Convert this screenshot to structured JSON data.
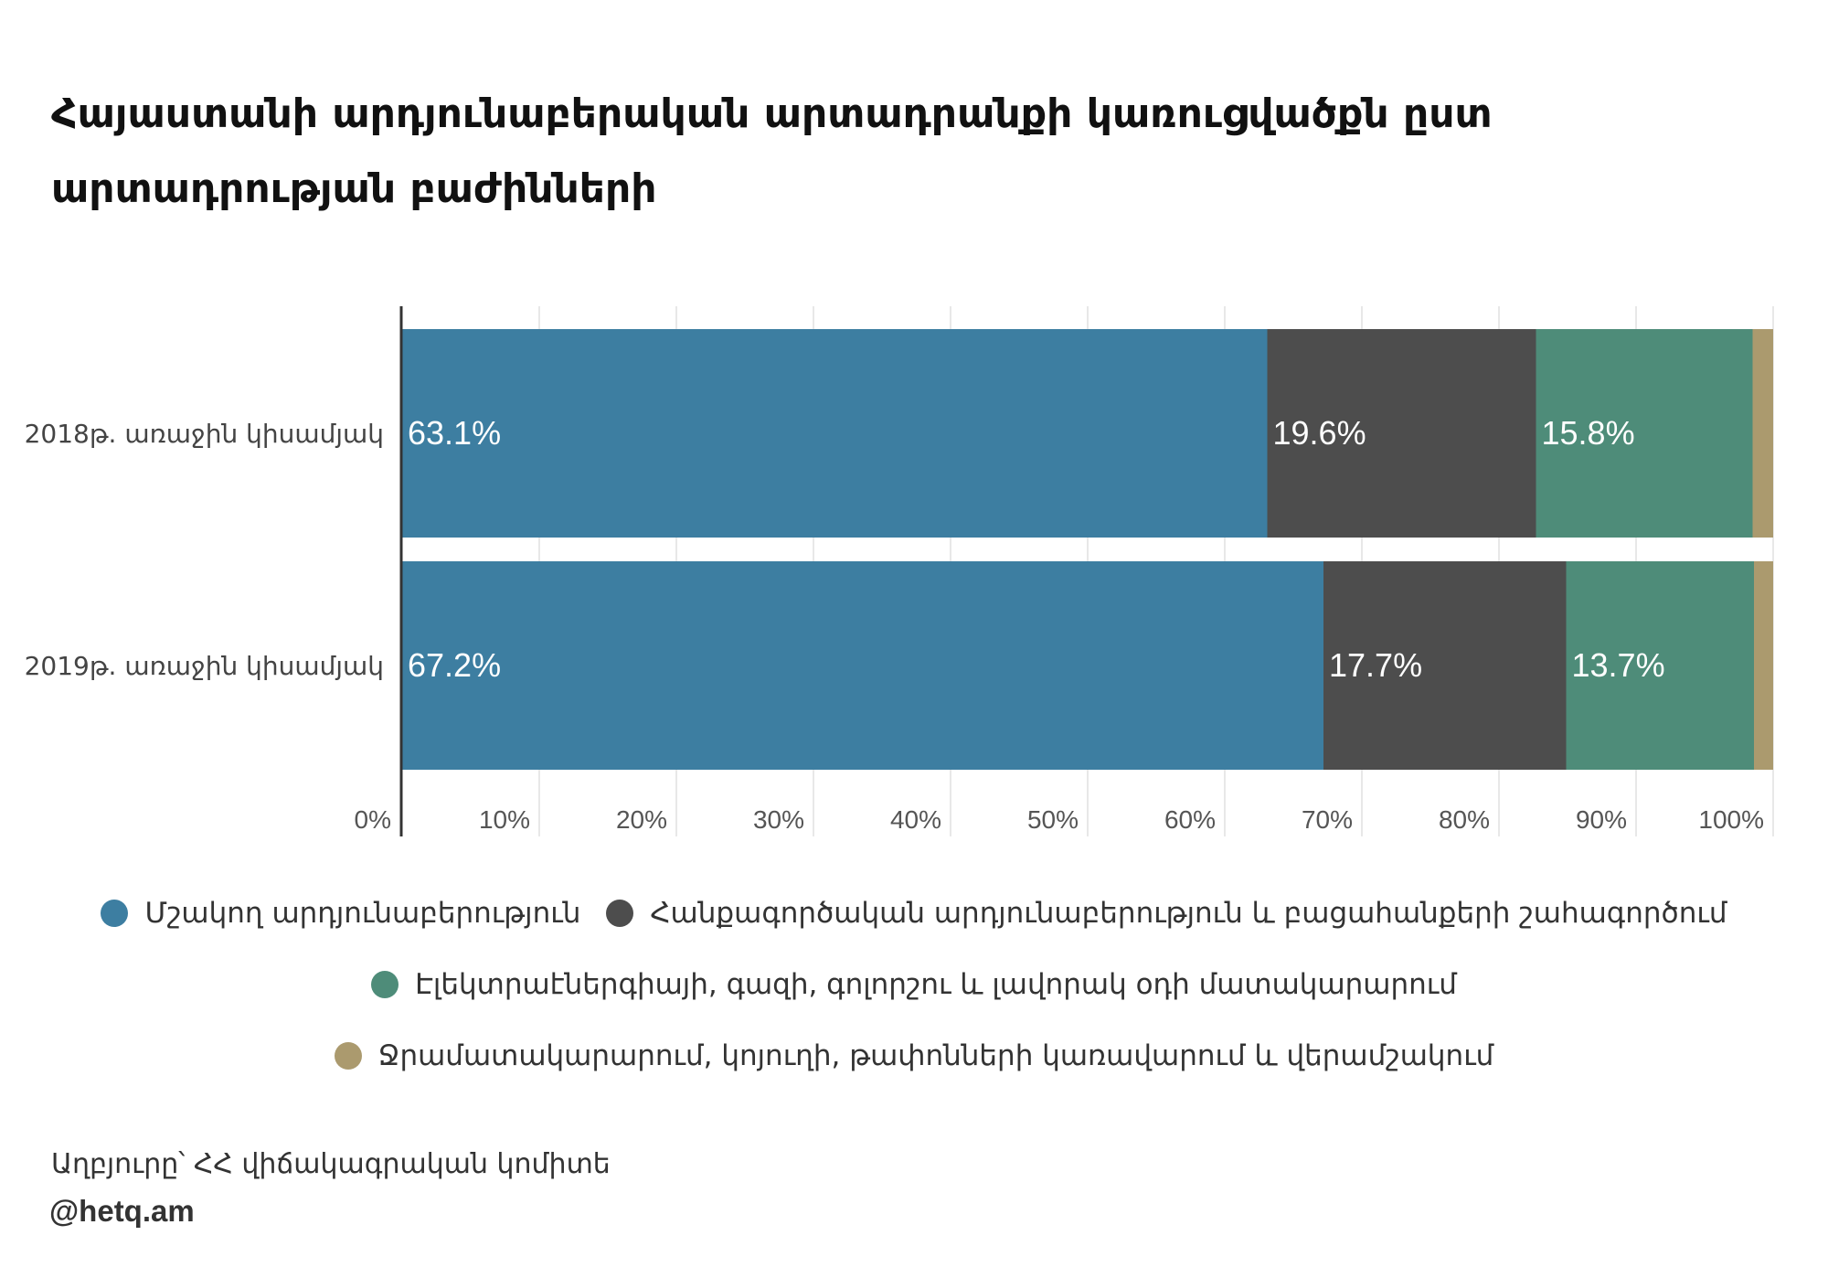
{
  "title": "Հայաստանի արդյունաբերական արտադրանքի կառուցվածքն ըստ արտադրության բաժինների",
  "chart_data": {
    "type": "bar",
    "orientation": "horizontal",
    "stacked": true,
    "categories": [
      "2018թ. առաջին կիսամյակ",
      "2019թ. առաջին կիսամյակ"
    ],
    "series": [
      {
        "name": "Մշակող արդյունաբերություն",
        "color": "#3d7ea1",
        "values": [
          63.1,
          67.2
        ],
        "labels": [
          "63.1%",
          "67.2%"
        ]
      },
      {
        "name": "Հանքագործական արդյունաբերություն և բացահանքերի շահագործում",
        "color": "#4d4d4d",
        "values": [
          19.6,
          17.7
        ],
        "labels": [
          "19.6%",
          "17.7%"
        ]
      },
      {
        "name": "Էլեկտրաէներգիայի, գազի, գոլորշու և լավորակ օդի մատակարարում",
        "color": "#4e8c79",
        "values": [
          15.8,
          13.7
        ],
        "labels": [
          "15.8%",
          "13.7%"
        ]
      },
      {
        "name": "Ջրամատակարարում, կոյուղի, թափոնների կառավարում և վերամշակում",
        "color": "#ab9a6e",
        "values": [
          1.5,
          1.4
        ],
        "labels": [
          "",
          ""
        ]
      }
    ],
    "x_ticks": [
      "0%",
      "10%",
      "20%",
      "30%",
      "40%",
      "50%",
      "60%",
      "70%",
      "80%",
      "90%",
      "100%"
    ],
    "xlim": [
      0,
      100
    ],
    "grid": true,
    "legend_position": "bottom"
  },
  "source": "Աղբյուրը՝ ՀՀ վիճակագրական կոմիտե",
  "handle": "@hetq.am"
}
